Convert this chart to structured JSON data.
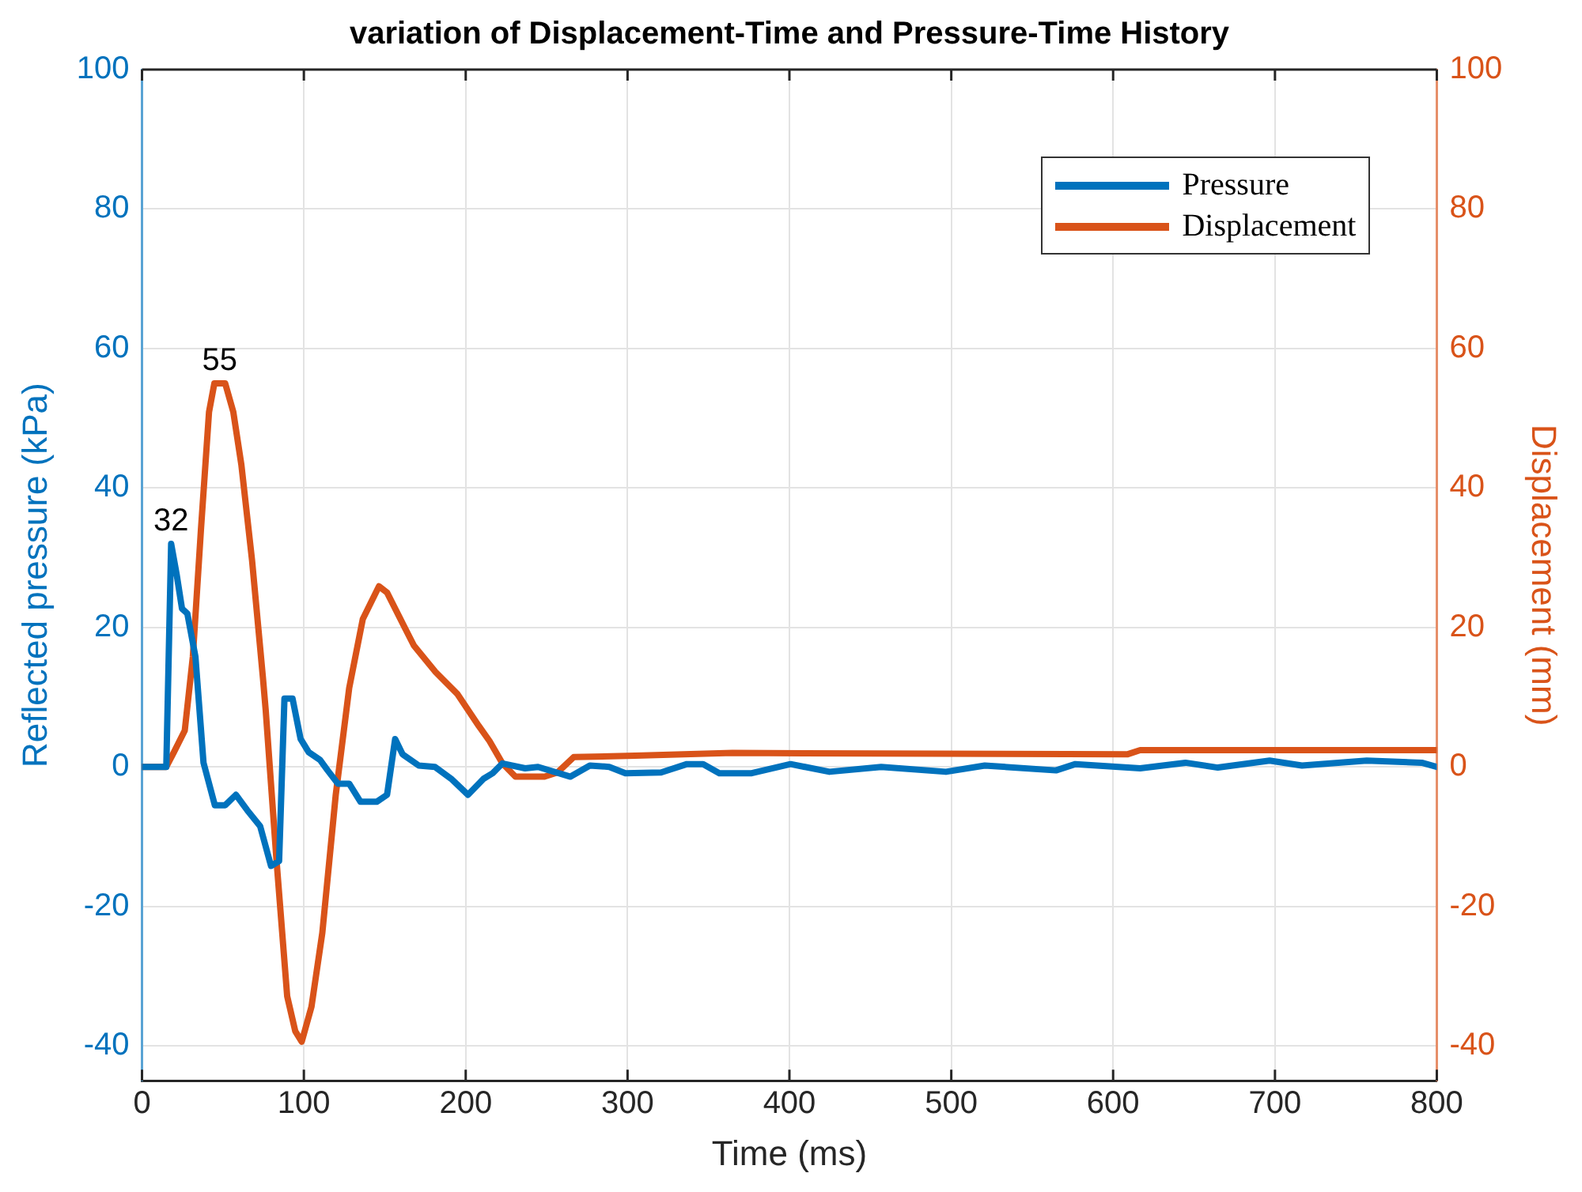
{
  "chart_data": {
    "type": "line",
    "title": "variation of Displacement-Time and Pressure-Time History",
    "xlabel": "Time (ms)",
    "ylabel": "Reflected pressure (kPa)",
    "y2label": "Displacement (mm)",
    "xlim": [
      0,
      800
    ],
    "xticks": [
      0,
      100,
      200,
      300,
      400,
      500,
      600,
      700,
      800
    ],
    "ylim": [
      -45,
      100
    ],
    "yticks": [
      -40,
      -20,
      0,
      20,
      40,
      60,
      80,
      100
    ],
    "y2lim": [
      -45,
      100
    ],
    "y2ticks": [
      -40,
      -20,
      0,
      20,
      40,
      60,
      80,
      100
    ],
    "grid": true,
    "legend": "top right",
    "annotations": [
      {
        "text": "32",
        "x": 18,
        "y": 32
      },
      {
        "text": "55",
        "x": 48,
        "y": 55
      }
    ],
    "series": [
      {
        "name": "Pressure",
        "color": "#0072bd",
        "x": [
          0,
          15,
          18,
          21.4,
          24.7,
          28,
          33,
          38,
          45,
          51.4,
          58,
          65,
          73,
          79.7,
          84.7,
          88,
          93,
          98,
          103,
          110,
          114.7,
          121,
          128,
          135,
          145,
          151.4,
          156.4,
          161,
          171,
          181,
          191,
          201.4,
          211,
          216.7,
          222.7,
          236.7,
          244.7,
          264.7,
          276.7,
          288.7,
          298.7,
          320.7,
          336.7,
          346.7,
          356.7,
          376.7,
          400.7,
          424.7,
          456.7,
          496.7,
          520.7,
          564.7,
          576.7,
          616.7,
          644.7,
          664.7,
          696.7,
          716.7,
          756.7,
          790.7,
          800
        ],
        "values": [
          0,
          0,
          32,
          27.6,
          22.7,
          22,
          15.8,
          0.6,
          -5.5,
          -5.5,
          -4,
          -6.2,
          -8.5,
          -14.2,
          -13.5,
          9.8,
          9.8,
          4,
          2.1,
          1,
          -0.5,
          -2.4,
          -2.4,
          -5,
          -5,
          -4,
          4,
          1.8,
          0.2,
          0,
          -1.7,
          -4,
          -1.7,
          -0.9,
          0.5,
          -0.2,
          0,
          -1.4,
          0.2,
          0,
          -0.9,
          -0.8,
          0.4,
          0.4,
          -0.9,
          -0.9,
          0.4,
          -0.7,
          0,
          -0.7,
          0.2,
          -0.5,
          0.4,
          -0.2,
          0.6,
          -0.1,
          0.9,
          0.2,
          0.9,
          0.6,
          0
        ]
      },
      {
        "name": "Displacement",
        "color": "#d95319",
        "axis": "y2",
        "x": [
          0,
          15,
          19.7,
          26.4,
          31.4,
          36.4,
          41.4,
          44.7,
          51.4,
          56.4,
          61.4,
          68,
          74.7,
          76.4,
          83,
          89.7,
          94.7,
          98.7,
          104.7,
          111.4,
          119.7,
          128,
          136.4,
          146.4,
          151.4,
          161.4,
          168,
          181.4,
          194.7,
          208,
          214.7,
          222.7,
          230.7,
          248.7,
          256.7,
          266.7,
          304.7,
          364.7,
          608.7,
          616.7,
          800
        ],
        "values": [
          0,
          0,
          2.1,
          5.2,
          15.8,
          34,
          50.9,
          55,
          55,
          50.9,
          43.3,
          29.6,
          12.8,
          8.2,
          -13.1,
          -32.9,
          -37.9,
          -39.4,
          -34.4,
          -23.8,
          -4,
          11.3,
          21.2,
          25.9,
          25,
          20.4,
          17.4,
          13.6,
          10.5,
          5.9,
          3.7,
          0.5,
          -1.4,
          -1.4,
          -0.8,
          1.4,
          1.6,
          2,
          1.8,
          2.4,
          2.4
        ]
      }
    ]
  }
}
